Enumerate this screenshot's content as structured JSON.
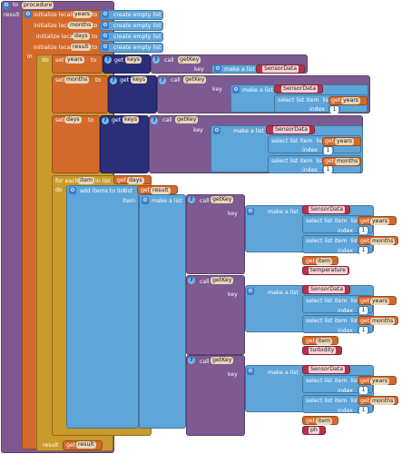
{
  "procedure": {
    "to": "to",
    "name": "procedure",
    "result": "result"
  },
  "init": [
    {
      "kw": "initialize local",
      "var": "years",
      "to": "to",
      "val": "create empty list"
    },
    {
      "kw": "initialize local",
      "var": "months",
      "to": "to",
      "val": "create empty list"
    },
    {
      "kw": "initialize local",
      "var": "days",
      "to": "to",
      "val": "create empty list"
    },
    {
      "kw": "initialize local",
      "var": "result",
      "to": "to",
      "val": "create empty list"
    }
  ],
  "in_label": "in",
  "do_label": "do",
  "set_label": "set",
  "get_label": "get",
  "keys_label": "keys",
  "call_label": "call",
  "getkey_label": "getKey",
  "key_label": "key",
  "make_a_list": "make a list",
  "sensor_data": "SensorData",
  "select_list_item": "select list item",
  "list_label": "list",
  "index_label": "index",
  "index_value": "1",
  "vars": {
    "years": "years",
    "months": "months",
    "days": "days",
    "item": "item",
    "result": "result"
  },
  "foreach": {
    "kw": "for each",
    "var": "item",
    "in_list": "in list",
    "get": "get",
    "list_var": "days"
  },
  "add_items": {
    "kw": "add items to list",
    "list": "list",
    "item": "item"
  },
  "fields": [
    "temperature",
    "turbidity",
    "ph"
  ],
  "result_row": {
    "label": "result",
    "get": "get",
    "var": "result"
  }
}
